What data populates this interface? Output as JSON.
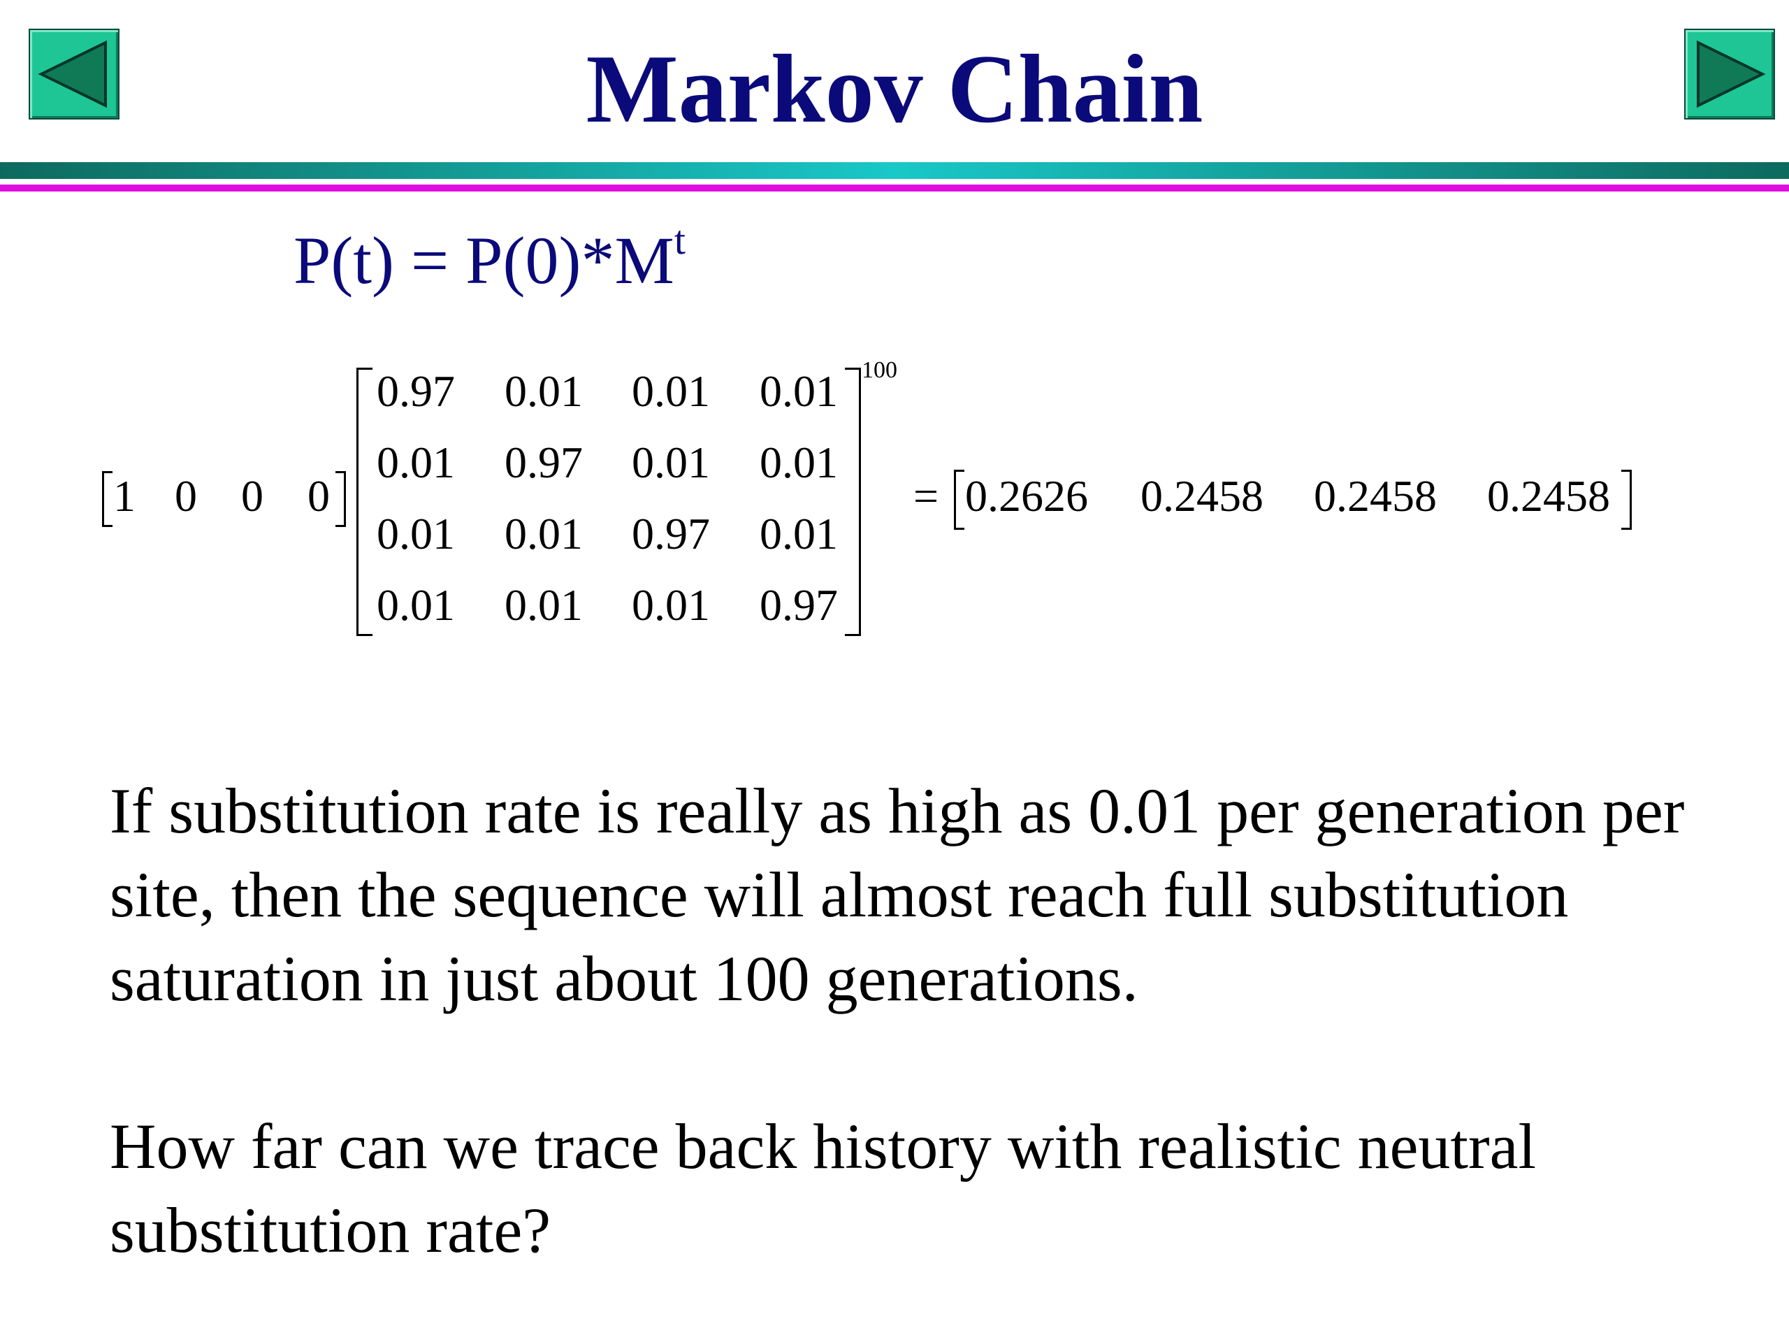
{
  "title": "Markov Chain",
  "nav": {
    "prev_icon": "triangle-left-icon",
    "next_icon": "triangle-right-icon"
  },
  "formula": {
    "base": "P(t) = P(0)*M",
    "superscript": "t"
  },
  "equation": {
    "row_vector": [
      "1",
      "0",
      "0",
      "0"
    ],
    "matrix": [
      [
        "0.97",
        "0.01",
        "0.01",
        "0.01"
      ],
      [
        "0.01",
        "0.97",
        "0.01",
        "0.01"
      ],
      [
        "0.01",
        "0.01",
        "0.97",
        "0.01"
      ],
      [
        "0.01",
        "0.01",
        "0.01",
        "0.97"
      ]
    ],
    "power": "100",
    "equals": "=",
    "result": [
      "0.2626",
      "0.2458",
      "0.2458",
      "0.2458"
    ]
  },
  "paragraphs": [
    "If substitution rate is really as high as 0.01 per generation per site, then the sequence will almost reach full substitution saturation in just about 100 generations.",
    "How far can we trace back history with realistic neutral substitution rate?"
  ]
}
